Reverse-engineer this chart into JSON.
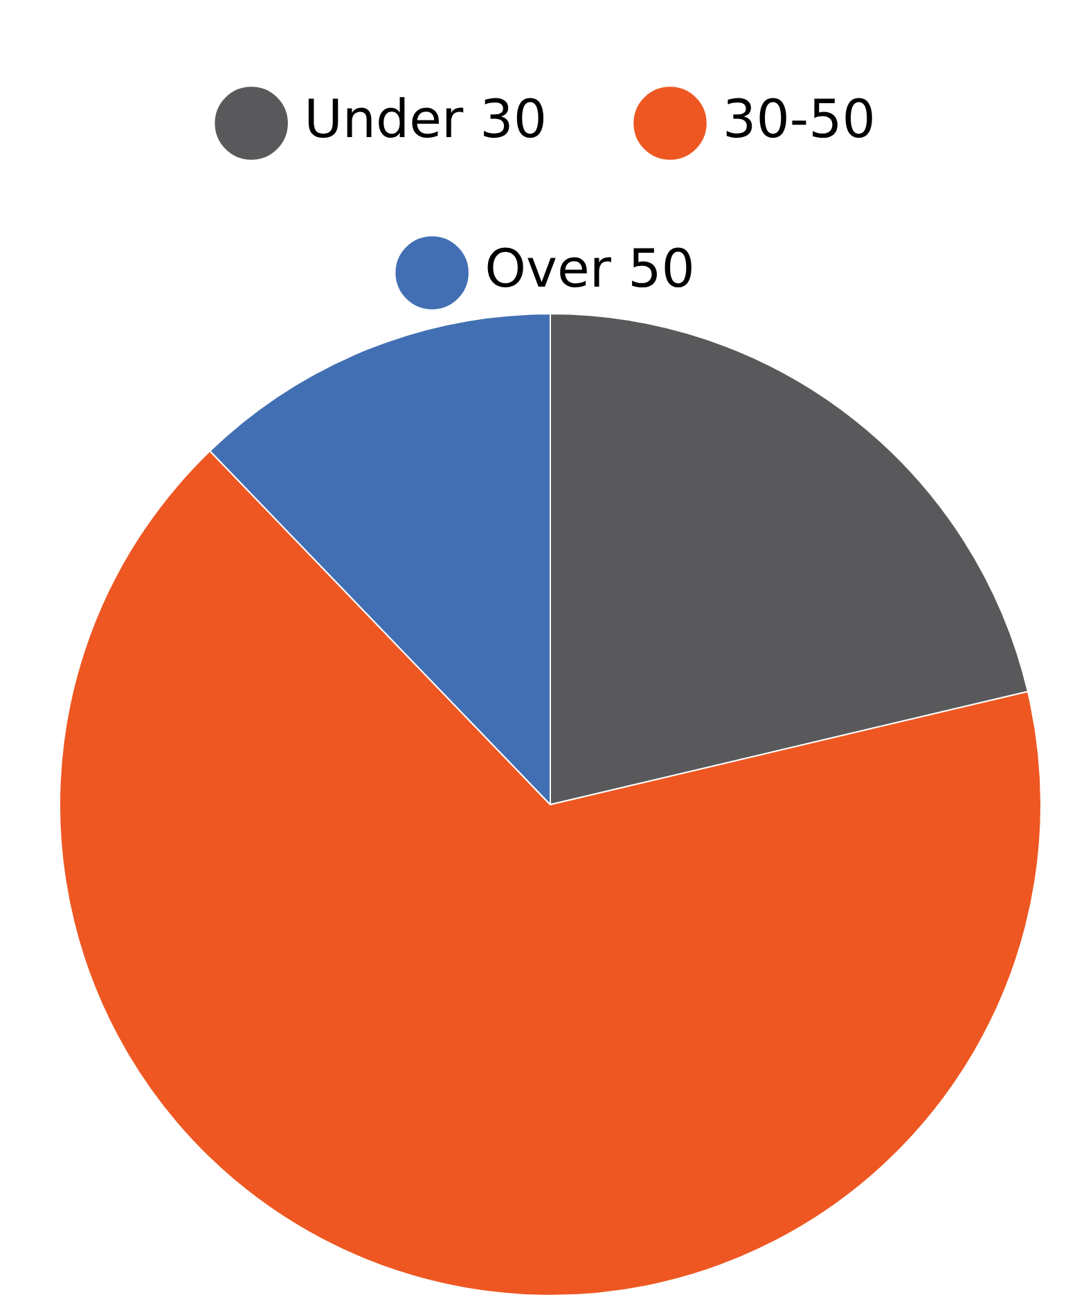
{
  "chart_data": {
    "type": "pie",
    "categories": [
      "Under 30",
      "30-50",
      "Over 50"
    ],
    "values": [
      21.3,
      66.5,
      12.2
    ],
    "colors": [
      "#59595b",
      "#ee5722",
      "#426fb3"
    ],
    "legend": "top"
  }
}
